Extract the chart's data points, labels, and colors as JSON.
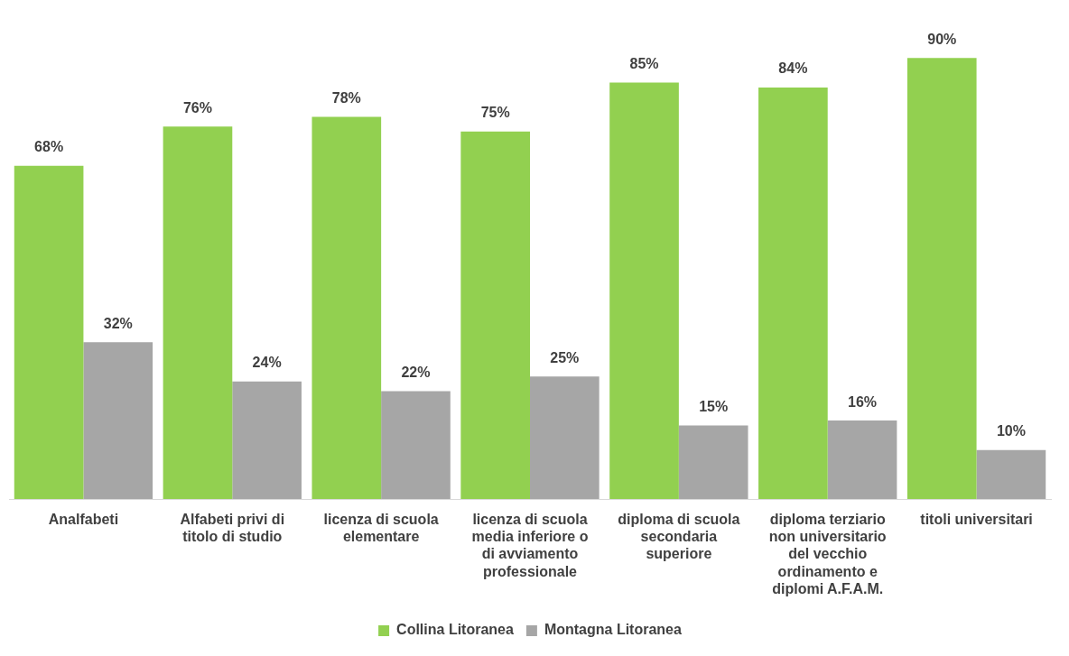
{
  "chart_data": {
    "type": "bar",
    "categories": [
      "Analfabeti",
      "Alfabeti privi di titolo di studio",
      "licenza di scuola elementare",
      "licenza di scuola media inferiore o di avviamento professionale",
      "diploma di scuola secondaria superiore",
      "diploma terziario non universitario del vecchio ordinamento e diplomi A.F.A.M.",
      "titoli universitari"
    ],
    "series": [
      {
        "name": "Collina Litoranea",
        "color": "#92d050",
        "values": [
          68,
          76,
          78,
          75,
          85,
          84,
          90
        ],
        "value_labels": [
          "68%",
          "76%",
          "78%",
          "75%",
          "85%",
          "84%",
          "90%"
        ]
      },
      {
        "name": "Montagna Litoranea",
        "color": "#a6a6a6",
        "values": [
          32,
          24,
          22,
          25,
          15,
          16,
          10
        ],
        "value_labels": [
          "32%",
          "24%",
          "22%",
          "25%",
          "15%",
          "16%",
          "10%"
        ]
      }
    ],
    "legend": "bottom",
    "grid": false,
    "tick_labels": "x"
  }
}
